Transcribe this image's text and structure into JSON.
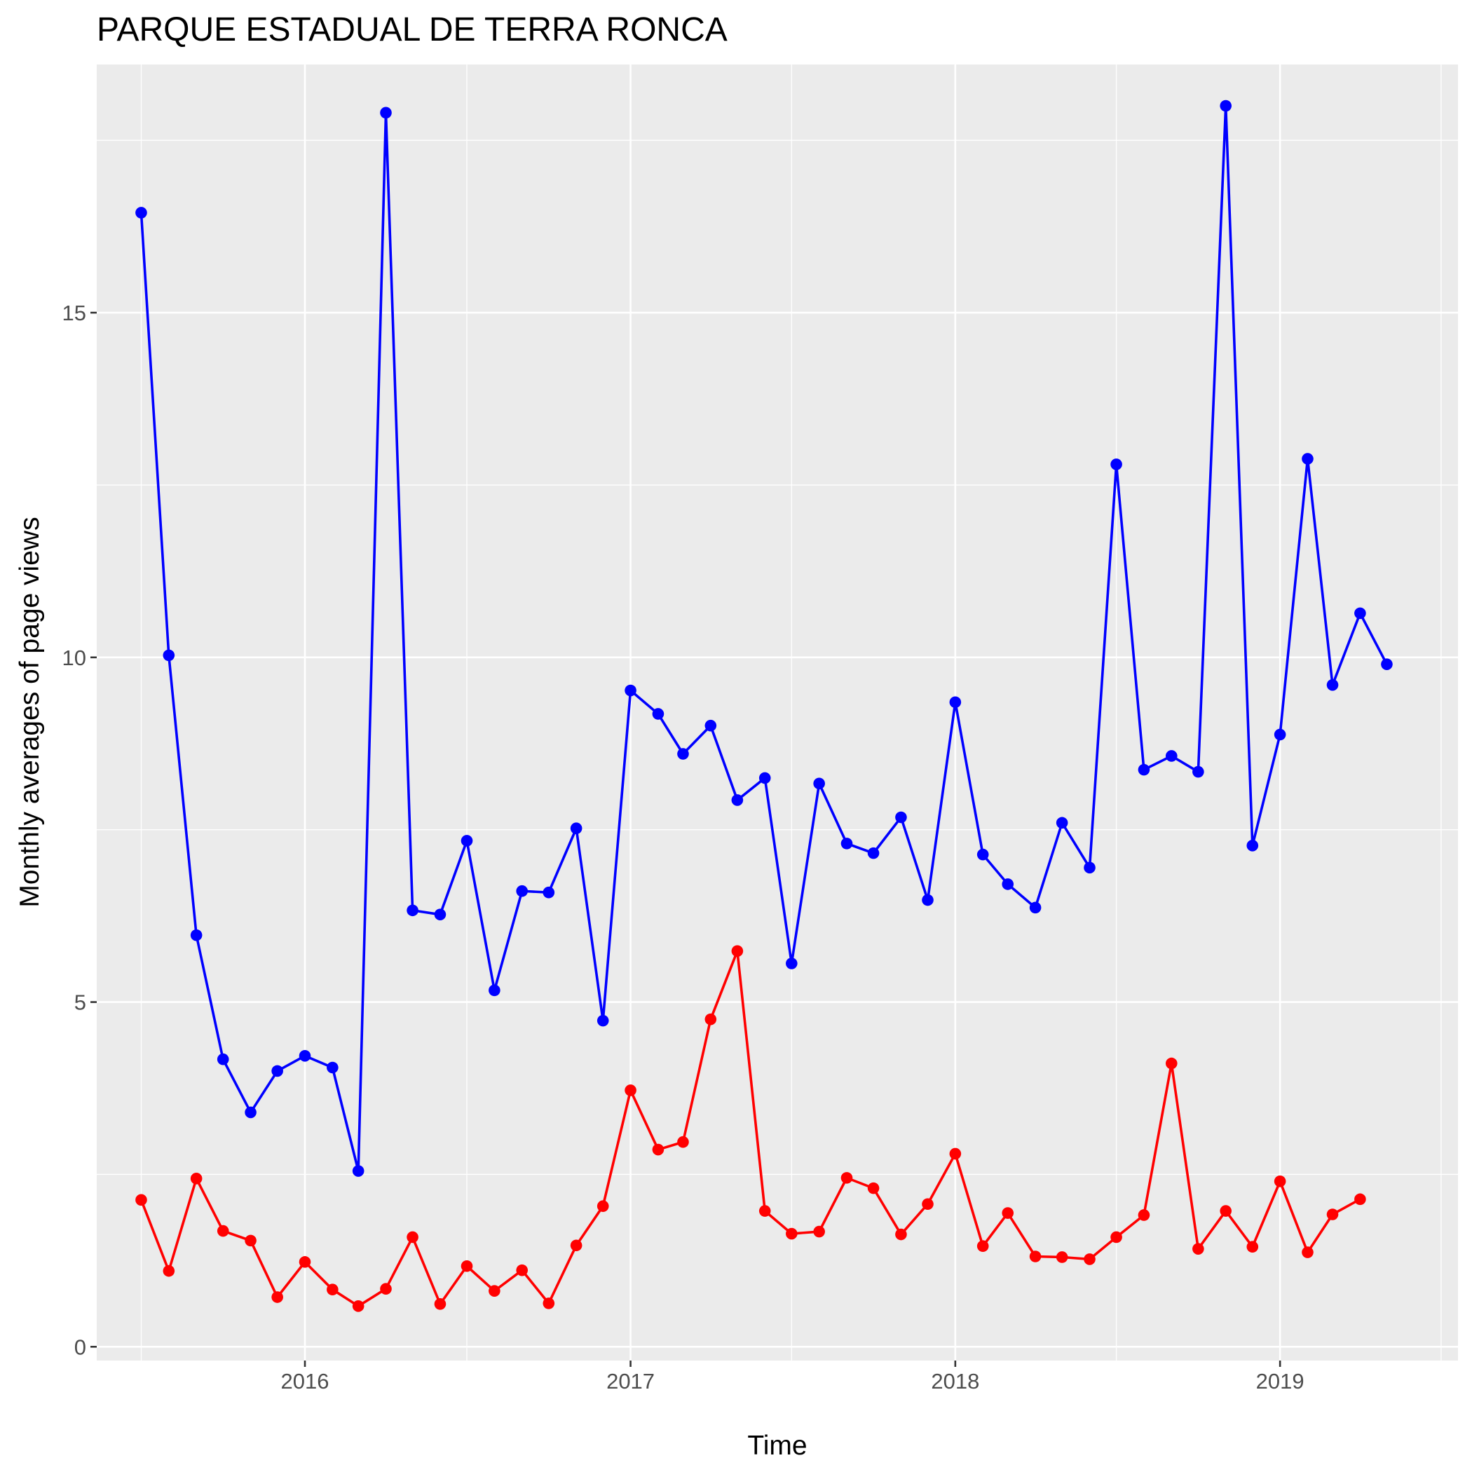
{
  "chart_data": {
    "type": "line",
    "title": "PARQUE ESTADUAL DE TERRA RONCA",
    "xlabel": "Time",
    "ylabel": "Monthly averages of page views",
    "x_ticks": [
      "2016",
      "2017",
      "2018",
      "2019"
    ],
    "y_ticks": [
      "0",
      "5",
      "10",
      "15"
    ],
    "ylim": [
      -0.2,
      18.6
    ],
    "xlim": [
      "2015-05-12",
      "2019-07-20"
    ],
    "grid": true,
    "legend": "none",
    "series": [
      {
        "color": "#0000ff",
        "x": [
          "2015-07-01",
          "2015-08-01",
          "2015-09-01",
          "2015-10-01",
          "2015-11-01",
          "2015-12-01",
          "2016-01-01",
          "2016-02-01",
          "2016-03-01",
          "2016-04-01",
          "2016-05-01",
          "2016-06-01",
          "2016-07-01",
          "2016-08-01",
          "2016-09-01",
          "2016-10-01",
          "2016-11-01",
          "2016-12-01",
          "2017-01-01",
          "2017-02-01",
          "2017-03-01",
          "2017-04-01",
          "2017-05-01",
          "2017-06-01",
          "2017-07-01",
          "2017-08-01",
          "2017-09-01",
          "2017-10-01",
          "2017-11-01",
          "2017-12-01",
          "2018-01-01",
          "2018-02-01",
          "2018-03-01",
          "2018-04-01",
          "2018-05-01",
          "2018-06-01",
          "2018-07-01",
          "2018-08-01",
          "2018-09-01",
          "2018-10-01",
          "2018-11-01",
          "2018-12-01",
          "2019-01-01",
          "2019-02-01",
          "2019-03-01",
          "2019-04-01",
          "2019-05-01"
        ],
        "values": [
          16.45,
          10.03,
          5.97,
          4.17,
          3.4,
          4.0,
          4.22,
          4.05,
          2.55,
          17.9,
          6.33,
          6.27,
          7.34,
          5.17,
          6.61,
          6.59,
          7.52,
          4.73,
          9.52,
          9.18,
          8.6,
          9.01,
          7.93,
          8.25,
          5.56,
          8.17,
          7.3,
          7.16,
          7.68,
          6.48,
          9.35,
          7.14,
          6.71,
          6.37,
          7.6,
          6.95,
          12.8,
          8.37,
          8.57,
          8.34,
          18.0,
          7.27,
          8.88,
          12.88,
          9.6,
          10.64,
          9.9
        ]
      },
      {
        "color": "#ff0000",
        "x": [
          "2015-07-01",
          "2015-08-01",
          "2015-09-01",
          "2015-10-01",
          "2015-11-01",
          "2015-12-01",
          "2016-01-01",
          "2016-02-01",
          "2016-03-01",
          "2016-04-01",
          "2016-05-01",
          "2016-06-01",
          "2016-07-01",
          "2016-08-01",
          "2016-09-01",
          "2016-10-01",
          "2016-11-01",
          "2016-12-01",
          "2017-01-01",
          "2017-02-01",
          "2017-03-01",
          "2017-04-01",
          "2017-05-01",
          "2017-06-01",
          "2017-07-01",
          "2017-08-01",
          "2017-09-01",
          "2017-10-01",
          "2017-11-01",
          "2017-12-01",
          "2018-01-01",
          "2018-02-01",
          "2018-03-01",
          "2018-04-01",
          "2018-05-01",
          "2018-06-01",
          "2018-07-01",
          "2018-08-01",
          "2018-09-01",
          "2018-10-01",
          "2018-11-01",
          "2018-12-01",
          "2019-01-01",
          "2019-02-01",
          "2019-03-01",
          "2019-04-01"
        ],
        "values": [
          2.13,
          1.1,
          2.44,
          1.68,
          1.54,
          0.72,
          1.23,
          0.83,
          0.59,
          0.84,
          1.59,
          0.62,
          1.17,
          0.81,
          1.11,
          0.63,
          1.47,
          2.04,
          3.72,
          2.86,
          2.97,
          4.75,
          5.74,
          1.97,
          1.64,
          1.67,
          2.45,
          2.3,
          1.63,
          2.07,
          2.8,
          1.46,
          1.94,
          1.31,
          1.3,
          1.27,
          1.59,
          1.91,
          4.11,
          1.42,
          1.97,
          1.45,
          2.4,
          1.37,
          1.92,
          2.14
        ]
      }
    ]
  }
}
